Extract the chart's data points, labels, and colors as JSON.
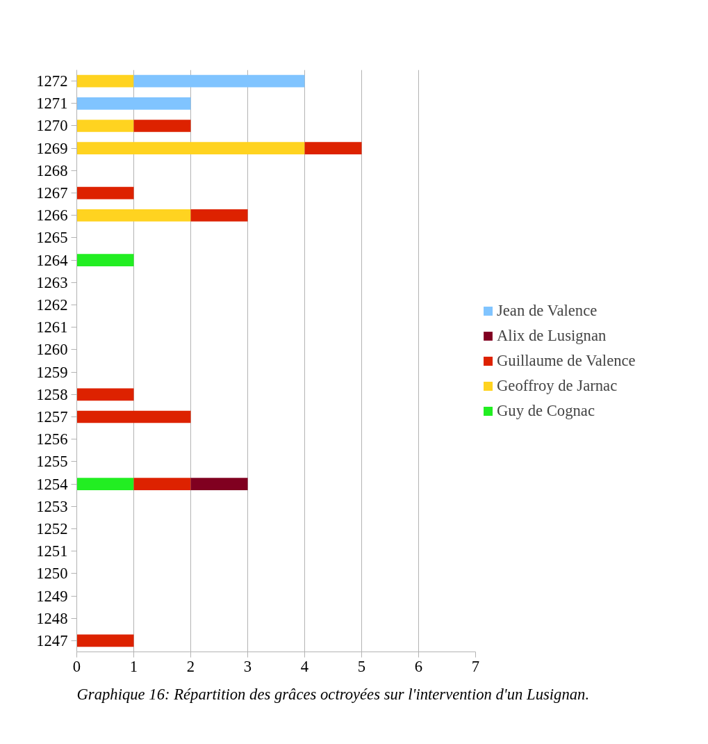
{
  "chart_data": {
    "type": "bar",
    "orientation": "horizontal",
    "stacked": true,
    "categories": [
      "1272",
      "1271",
      "1270",
      "1269",
      "1268",
      "1267",
      "1266",
      "1265",
      "1264",
      "1263",
      "1262",
      "1261",
      "1260",
      "1259",
      "1258",
      "1257",
      "1256",
      "1255",
      "1254",
      "1253",
      "1252",
      "1251",
      "1250",
      "1249",
      "1248",
      "1247"
    ],
    "series": [
      {
        "name": "Guy de Cognac",
        "color": "#22ee22",
        "values": [
          null,
          null,
          null,
          null,
          null,
          null,
          null,
          null,
          1,
          null,
          null,
          null,
          null,
          null,
          null,
          null,
          null,
          null,
          1,
          null,
          null,
          null,
          null,
          null,
          null,
          null
        ]
      },
      {
        "name": "Geoffroy de Jarnac",
        "color": "#ffd320",
        "values": [
          1,
          null,
          1,
          4,
          null,
          null,
          2,
          null,
          null,
          null,
          null,
          null,
          null,
          null,
          null,
          null,
          null,
          null,
          null,
          null,
          null,
          null,
          null,
          null,
          null,
          null
        ]
      },
      {
        "name": "Guillaume de Valence",
        "color": "#dd2200",
        "values": [
          null,
          null,
          1,
          1,
          null,
          1,
          1,
          null,
          null,
          null,
          null,
          null,
          null,
          null,
          1,
          2,
          null,
          null,
          1,
          null,
          null,
          null,
          null,
          null,
          null,
          1
        ]
      },
      {
        "name": "Alix de Lusignan",
        "color": "#800020",
        "values": [
          null,
          null,
          null,
          null,
          null,
          null,
          null,
          null,
          null,
          null,
          null,
          null,
          null,
          null,
          null,
          null,
          null,
          null,
          1,
          null,
          null,
          null,
          null,
          null,
          null,
          null
        ]
      },
      {
        "name": "Jean de Valence",
        "color": "#80c4ff",
        "values": [
          3,
          2,
          null,
          null,
          null,
          null,
          null,
          null,
          null,
          null,
          null,
          null,
          null,
          null,
          null,
          null,
          null,
          null,
          null,
          null,
          null,
          null,
          null,
          null,
          null,
          null
        ]
      }
    ],
    "xlim": [
      0,
      7
    ],
    "xticks": [
      0,
      1,
      2,
      3,
      4,
      5,
      6,
      7
    ],
    "grid": "x",
    "legend": "right",
    "annotations": [
      "Graphique 16: Répartition des grâces octroyées sur l'intervention d'un Lusignan."
    ]
  }
}
